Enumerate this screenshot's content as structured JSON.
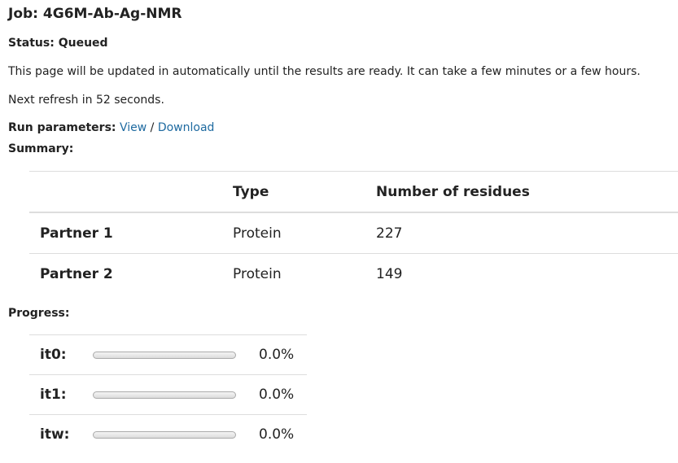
{
  "job": {
    "title_prefix": "Job:",
    "name": "4G6M-Ab-Ag-NMR"
  },
  "status": {
    "label": "Status:",
    "value": "Queued"
  },
  "info_text": "This page will be updated in automatically until the results are ready. It can take a few minutes or a few hours.",
  "refresh": {
    "prefix": "Next refresh in",
    "seconds": "52",
    "suffix": "seconds."
  },
  "run_parameters": {
    "label": "Run parameters:",
    "view_link": "View",
    "separator": "/",
    "download_link": "Download"
  },
  "summary": {
    "label": "Summary:",
    "headers": [
      "",
      "Type",
      "Number of residues"
    ],
    "rows": [
      {
        "name": "Partner 1",
        "type": "Protein",
        "residues": "227"
      },
      {
        "name": "Partner 2",
        "type": "Protein",
        "residues": "149"
      }
    ]
  },
  "progress": {
    "label": "Progress:",
    "items": [
      {
        "name": "it0:",
        "fraction": 0.0,
        "value": "0.0%"
      },
      {
        "name": "it1:",
        "fraction": 0.0,
        "value": "0.0%"
      },
      {
        "name": "itw:",
        "fraction": 0.0,
        "value": "0.0%"
      }
    ]
  },
  "colors": {
    "link": "#1e6aa0",
    "text": "#222222",
    "border": "#dddddd"
  }
}
